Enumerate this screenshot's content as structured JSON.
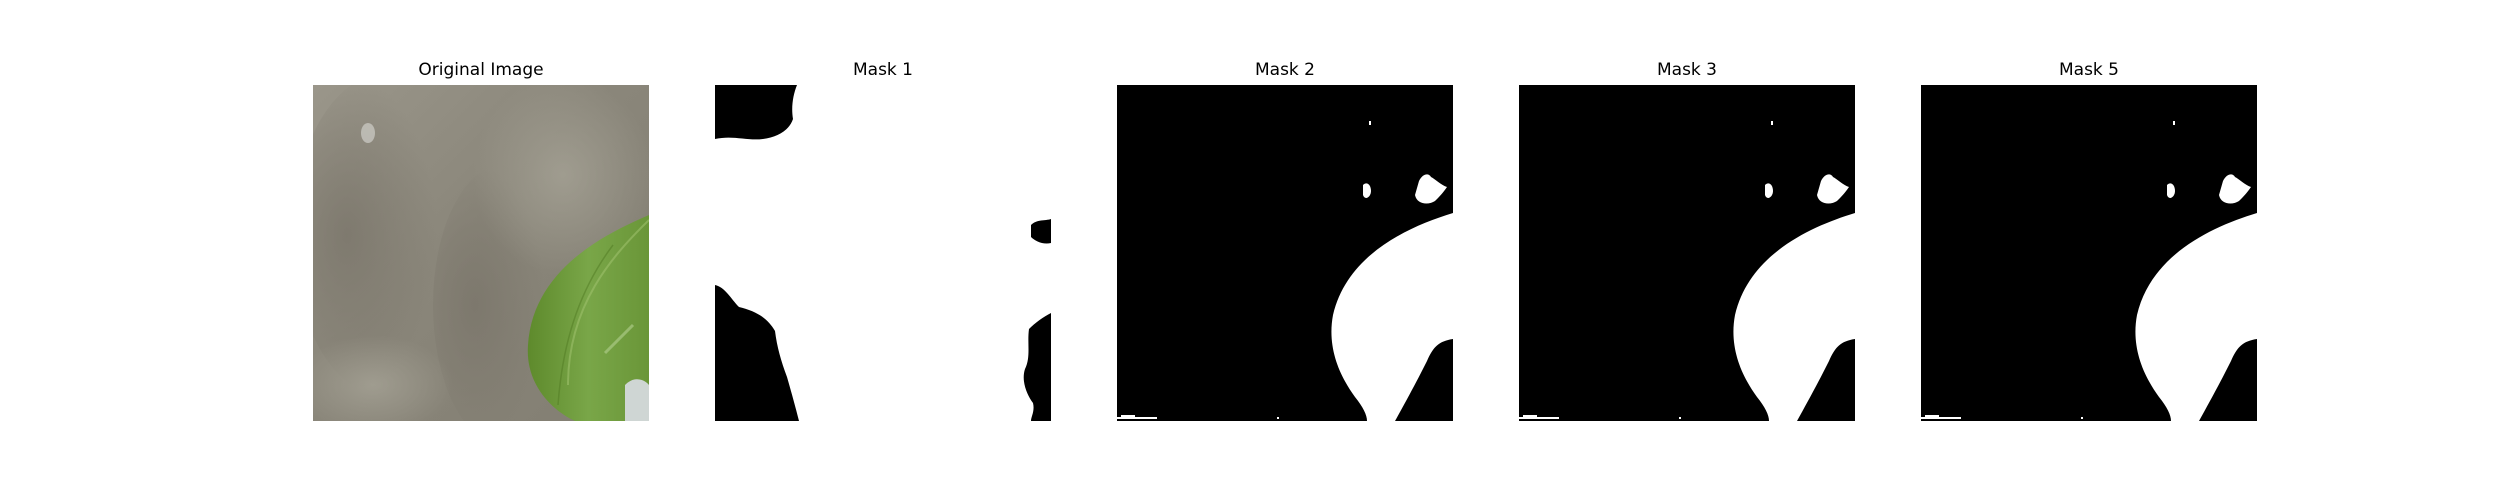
{
  "figure": {
    "panels": [
      {
        "title": "Original Image",
        "kind": "photo",
        "subject": "green-leaf-on-gray-background"
      },
      {
        "title": "Mask 1",
        "kind": "mask"
      },
      {
        "title": "Mask 2",
        "kind": "mask"
      },
      {
        "title": "Mask 3",
        "kind": "mask"
      },
      {
        "title": "Mask 5",
        "kind": "mask"
      }
    ],
    "colors": {
      "mask_foreground": "#ffffff",
      "mask_background": "#000000",
      "leaf": "#6f9a3c",
      "photo_background": "#8f8c80"
    }
  }
}
